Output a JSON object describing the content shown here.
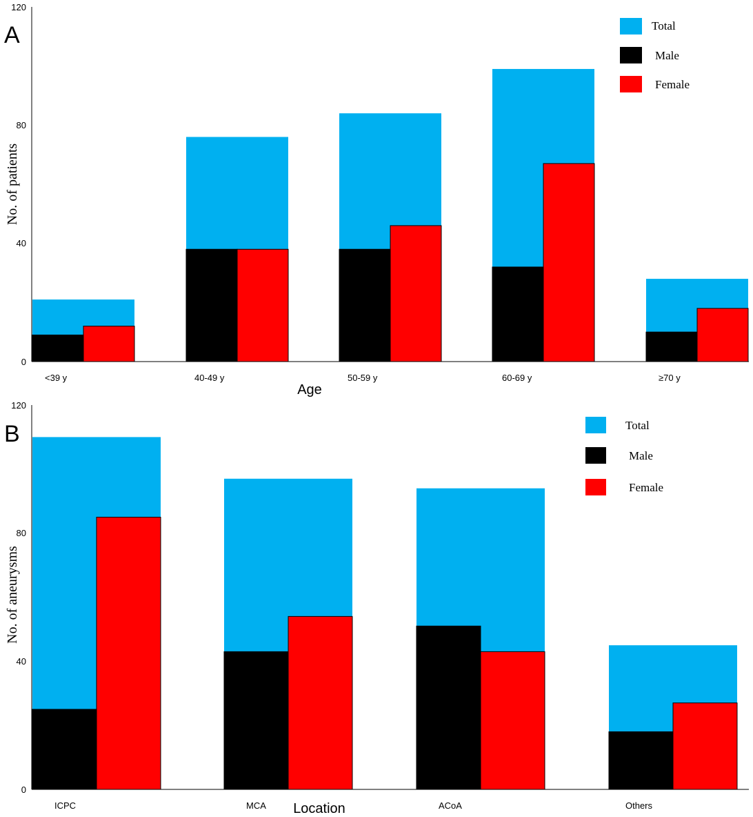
{
  "chart_data": [
    {
      "panel": "A",
      "type": "bar",
      "categories": [
        "<39 y",
        "40-49 y",
        "50-59 y",
        "60-69 y",
        "≥70 y"
      ],
      "series": [
        {
          "name": "Total",
          "values": [
            21,
            76,
            84,
            99,
            28
          ],
          "color": "#00b0f0"
        },
        {
          "name": "Male",
          "values": [
            9,
            38,
            38,
            32,
            10
          ],
          "color": "#000000"
        },
        {
          "name": "Female",
          "values": [
            12,
            38,
            46,
            67,
            18
          ],
          "color": "#ff0000"
        }
      ],
      "xlabel": "Age",
      "ylabel": "No. of patients",
      "ylim": [
        0,
        120
      ],
      "yticks": [
        "0",
        "40",
        "80",
        "120"
      ],
      "legend": [
        "Total",
        "Male",
        "Female"
      ],
      "legend_position": "top-right"
    },
    {
      "panel": "B",
      "type": "bar",
      "categories": [
        "ICPC",
        "MCA",
        "ACoA",
        "Others"
      ],
      "series": [
        {
          "name": "Total",
          "values": [
            110,
            97,
            94,
            45
          ],
          "color": "#00b0f0"
        },
        {
          "name": "Male",
          "values": [
            25,
            43,
            51,
            18
          ],
          "color": "#000000"
        },
        {
          "name": "Female",
          "values": [
            85,
            54,
            43,
            27
          ],
          "color": "#ff0000"
        }
      ],
      "xlabel": "Location",
      "ylabel": "No. of aneurysms",
      "ylim": [
        0,
        120
      ],
      "yticks": [
        "0",
        "40",
        "80",
        "120"
      ],
      "legend": [
        "Total",
        "Male",
        "Female"
      ],
      "legend_position": "top-right"
    }
  ]
}
